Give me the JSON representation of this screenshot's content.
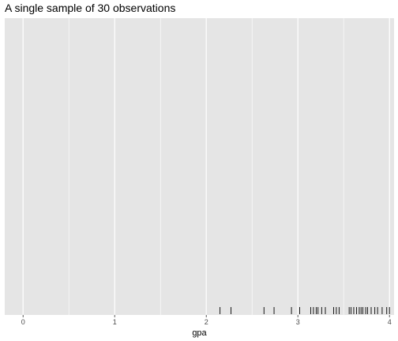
{
  "chart_data": {
    "type": "rug",
    "title": "A single sample of 30 observations",
    "xlabel": "gpa",
    "ylabel": "",
    "xlim": [
      -0.2,
      4.05
    ],
    "x_ticks": [
      0,
      1,
      2,
      3,
      4
    ],
    "x_tick_labels": [
      "0",
      "1",
      "2",
      "3",
      "4"
    ],
    "grid": true,
    "legend": "none",
    "colors": {
      "panel": "#e5e5e5",
      "grid": "#ffffff",
      "mark": "#000000"
    },
    "x": [
      2.15,
      2.27,
      2.63,
      2.74,
      2.93,
      3.02,
      3.14,
      3.17,
      3.2,
      3.22,
      3.26,
      3.3,
      3.39,
      3.42,
      3.45,
      3.56,
      3.58,
      3.61,
      3.64,
      3.67,
      3.69,
      3.71,
      3.74,
      3.76,
      3.8,
      3.84,
      3.87,
      3.92,
      3.97,
      4.0
    ]
  }
}
